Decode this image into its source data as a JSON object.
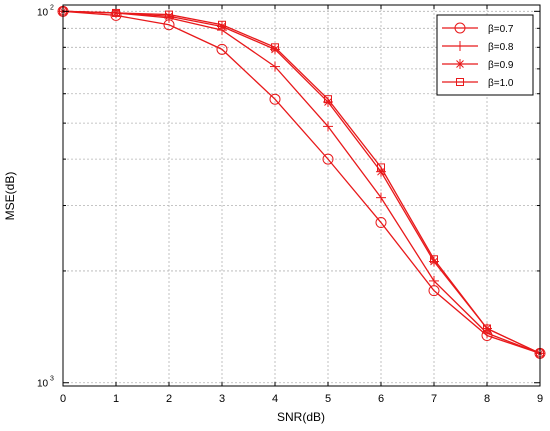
{
  "chart_data": {
    "type": "line",
    "xlabel": "SNR(dB)",
    "ylabel": "MSE(dB)",
    "x_ticks": [
      "0",
      "1",
      "2",
      "3",
      "4",
      "5",
      "6",
      "7",
      "8",
      "9"
    ],
    "y_tick_labels": [
      {
        "base": "10",
        "exp": "2",
        "value": 0.01
      },
      {
        "base": "10",
        "exp": "3",
        "value": 0.001
      }
    ],
    "y_scale": "log",
    "xlim": [
      0,
      9
    ],
    "ylim": [
      0.00098,
      0.0104
    ],
    "grid": true,
    "legend_position": "top-right",
    "color": "#e8191b",
    "x": [
      0,
      1,
      2,
      3,
      4,
      5,
      6,
      7,
      8,
      9
    ],
    "series": [
      {
        "name": "β=0.7",
        "marker": "circle",
        "values": [
          0.01,
          0.00975,
          0.0092,
          0.0079,
          0.0058,
          0.004,
          0.0027,
          0.00177,
          0.00134,
          0.0012
        ]
      },
      {
        "name": "β=0.8",
        "marker": "plus",
        "values": [
          0.01,
          0.0099,
          0.0096,
          0.0089,
          0.0071,
          0.0049,
          0.00315,
          0.00188,
          0.00136,
          0.0012
        ]
      },
      {
        "name": "β=0.9",
        "marker": "star",
        "values": [
          0.01,
          0.0099,
          0.0097,
          0.0091,
          0.0079,
          0.0057,
          0.0037,
          0.00212,
          0.0014,
          0.0012
        ]
      },
      {
        "name": "β=1.0",
        "marker": "square",
        "values": [
          0.01,
          0.0099,
          0.0098,
          0.0092,
          0.008,
          0.0058,
          0.0038,
          0.00215,
          0.0014,
          0.0012
        ]
      }
    ]
  }
}
